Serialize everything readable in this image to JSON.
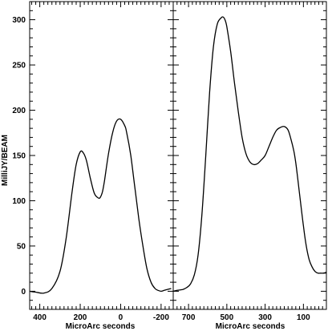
{
  "chart_data": [
    {
      "type": "line",
      "title": "",
      "xlabel": "MicroArc seconds",
      "ylabel": "MilliJY/BEAM",
      "xlim": [
        450,
        -260
      ],
      "ylim": [
        -20,
        320
      ],
      "xticks": [
        400,
        200,
        0,
        -200
      ],
      "xtick_labels": [
        "400",
        "200",
        "0",
        "-200"
      ],
      "yticks": [
        0,
        50,
        100,
        150,
        200,
        250,
        300
      ],
      "ytick_labels": [
        "0",
        "50",
        "100",
        "150",
        "200",
        "250",
        "300"
      ],
      "series": [
        {
          "x": [
            450,
            420,
            380,
            340,
            300,
            270,
            240,
            220,
            200,
            185,
            170,
            150,
            130,
            110,
            100,
            90,
            80,
            60,
            40,
            20,
            0,
            -20,
            -30,
            -50,
            -70,
            -90,
            -110,
            -130,
            -150,
            -170,
            -185,
            -200,
            -215,
            -230,
            -250
          ],
          "y": [
            0,
            -1,
            -2,
            3,
            22,
            58,
            110,
            140,
            154,
            153,
            145,
            125,
            108,
            103,
            104,
            110,
            122,
            152,
            175,
            188,
            190,
            183,
            175,
            150,
            115,
            80,
            50,
            25,
            10,
            3,
            1,
            0,
            1,
            2,
            3
          ]
        }
      ]
    },
    {
      "type": "line",
      "title": "",
      "xlabel": "MicroArc seconds",
      "ylabel": "",
      "xlim": [
        780,
        -20
      ],
      "ylim": [
        -20,
        320
      ],
      "xticks": [
        700,
        500,
        300,
        100
      ],
      "xtick_labels": [
        "700",
        "500",
        "300",
        "100"
      ],
      "yticks": [
        0,
        50,
        100,
        150,
        200,
        250,
        300
      ],
      "ytick_labels": [],
      "series": [
        {
          "x": [
            780,
            760,
            730,
            710,
            690,
            670,
            650,
            630,
            610,
            590,
            570,
            550,
            530,
            520,
            510,
            500,
            480,
            460,
            440,
            420,
            400,
            380,
            360,
            340,
            320,
            300,
            280,
            260,
            240,
            220,
            200,
            180,
            165,
            150,
            140,
            130,
            115,
            100,
            85,
            70,
            55,
            40,
            25,
            10,
            -5,
            -20
          ],
          "y": [
            0,
            1,
            2,
            4,
            8,
            18,
            40,
            85,
            150,
            220,
            270,
            295,
            302,
            303,
            300,
            292,
            265,
            230,
            198,
            170,
            152,
            143,
            140,
            141,
            145,
            150,
            160,
            170,
            178,
            181,
            182,
            178,
            168,
            155,
            142,
            125,
            98,
            72,
            50,
            35,
            27,
            22,
            20,
            20,
            20,
            21
          ]
        }
      ]
    }
  ]
}
